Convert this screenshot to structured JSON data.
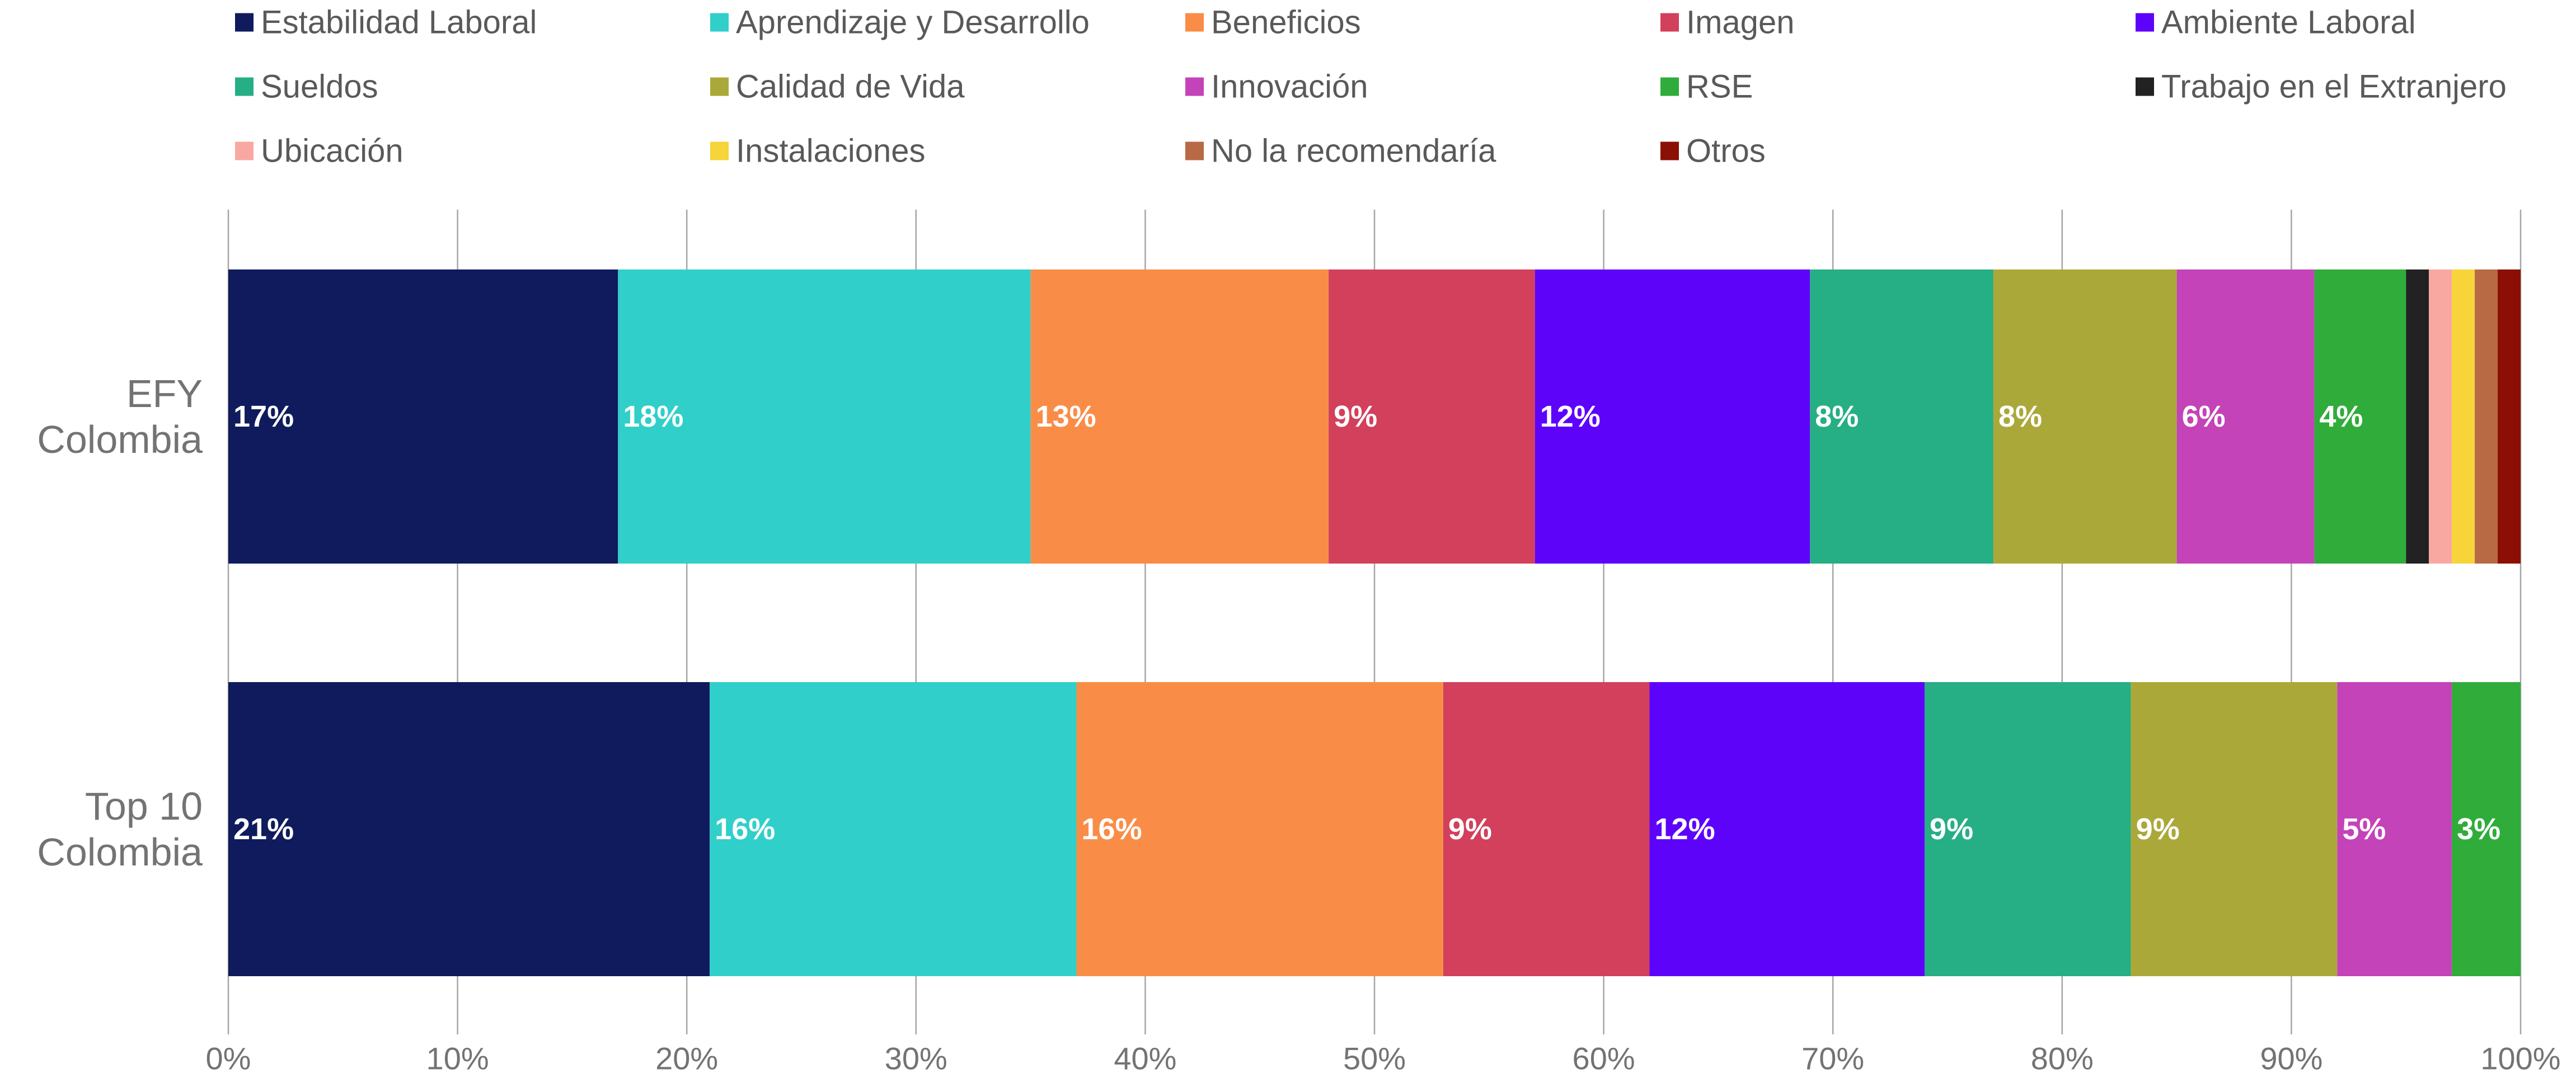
{
  "chart_data": {
    "type": "bar",
    "orientation": "horizontal",
    "stacked": true,
    "percent_stacked": true,
    "categories": [
      "EFY Colombia",
      "Top 10 Colombia"
    ],
    "category_label_lines": [
      [
        "EFY",
        "Colombia"
      ],
      [
        "Top 10",
        "Colombia"
      ]
    ],
    "series": [
      {
        "name": "Estabilidad Laboral",
        "color": "#0F1B5C",
        "values": [
          17,
          21
        ],
        "labels": [
          "17%",
          "21%"
        ]
      },
      {
        "name": "Aprendizaje y Desarrollo",
        "color": "#31CFC9",
        "values": [
          18,
          16
        ],
        "labels": [
          "18%",
          "16%"
        ]
      },
      {
        "name": "Beneficios",
        "color": "#F98D47",
        "values": [
          13,
          16
        ],
        "labels": [
          "13%",
          "16%"
        ]
      },
      {
        "name": "Imagen",
        "color": "#D2405C",
        "values": [
          9,
          9
        ],
        "labels": [
          "9%",
          "9%"
        ]
      },
      {
        "name": "Ambiente Laboral",
        "color": "#5E03FA",
        "values": [
          12,
          12
        ],
        "labels": [
          "12%",
          "12%"
        ]
      },
      {
        "name": "Sueldos",
        "color": "#26AE84",
        "values": [
          8,
          9
        ],
        "labels": [
          "8%",
          "9%"
        ]
      },
      {
        "name": "Calidad de Vida",
        "color": "#ABA83A",
        "values": [
          8,
          9
        ],
        "labels": [
          "8%",
          "9%"
        ]
      },
      {
        "name": "Innovación",
        "color": "#C443B8",
        "values": [
          6,
          5
        ],
        "labels": [
          "6%",
          "5%"
        ]
      },
      {
        "name": "RSE",
        "color": "#30AC3A",
        "values": [
          4,
          3
        ],
        "labels": [
          "4%",
          "3%"
        ]
      },
      {
        "name": "Trabajo en el Extranjero",
        "color": "#222222",
        "values": [
          1,
          0
        ],
        "labels": [
          "",
          ""
        ]
      },
      {
        "name": "Ubicación",
        "color": "#F9A8A1",
        "values": [
          1,
          0
        ],
        "labels": [
          "",
          ""
        ]
      },
      {
        "name": "Instalaciones",
        "color": "#F6D43A",
        "values": [
          1,
          0
        ],
        "labels": [
          "",
          ""
        ]
      },
      {
        "name": "No la recomendaría",
        "color": "#B76A44",
        "values": [
          1,
          0
        ],
        "labels": [
          "",
          ""
        ]
      },
      {
        "name": "Otros",
        "color": "#8B0F05",
        "values": [
          1,
          0
        ],
        "labels": [
          "",
          ""
        ]
      }
    ],
    "x_ticks": [
      "0%",
      "10%",
      "20%",
      "30%",
      "40%",
      "50%",
      "60%",
      "70%",
      "80%",
      "90%",
      "100%"
    ],
    "xlim": [
      0,
      100
    ],
    "title": "",
    "xlabel": "",
    "ylabel": "",
    "grid": "vertical",
    "legend_position": "top"
  }
}
